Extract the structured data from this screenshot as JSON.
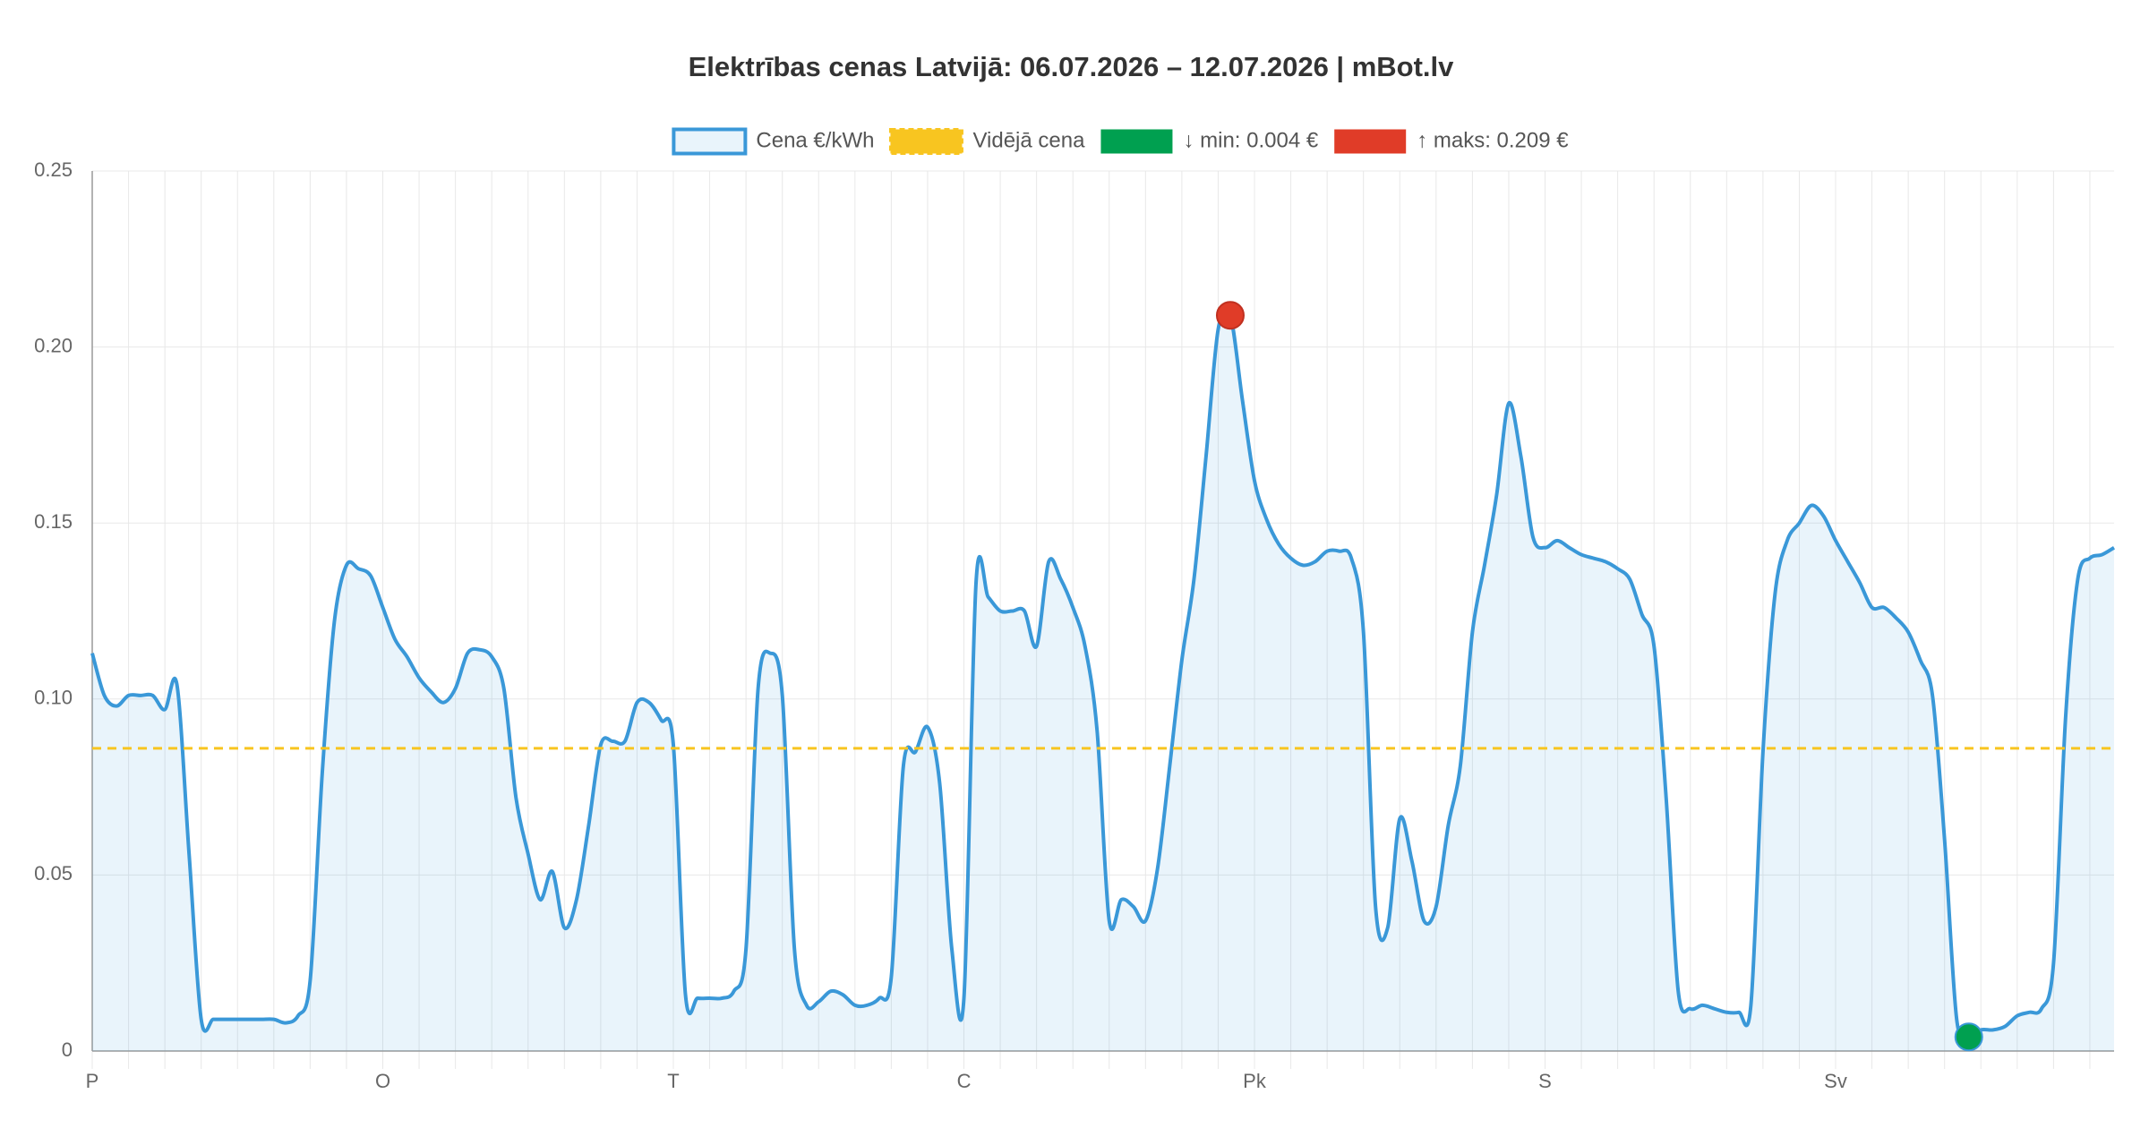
{
  "chart_data": {
    "type": "line",
    "title": "Elektrības cenas Latvijā: 06.07.2026 – 12.07.2026 | mBot.lv",
    "categories": [
      "P",
      null,
      null,
      null,
      null,
      null,
      null,
      null,
      null,
      null,
      null,
      null,
      null,
      null,
      null,
      null,
      null,
      null,
      null,
      null,
      null,
      null,
      null,
      null,
      "O",
      null,
      null,
      null,
      null,
      null,
      null,
      null,
      null,
      null,
      null,
      null,
      null,
      null,
      null,
      null,
      null,
      null,
      null,
      null,
      null,
      null,
      null,
      null,
      "T",
      null,
      null,
      null,
      null,
      null,
      null,
      null,
      null,
      null,
      null,
      null,
      null,
      null,
      null,
      null,
      null,
      null,
      null,
      null,
      null,
      null,
      null,
      null,
      "C",
      null,
      null,
      null,
      null,
      null,
      null,
      null,
      null,
      null,
      null,
      null,
      null,
      null,
      null,
      null,
      null,
      null,
      null,
      null,
      null,
      null,
      null,
      null,
      "Pk",
      null,
      null,
      null,
      null,
      null,
      null,
      null,
      null,
      null,
      null,
      null,
      null,
      null,
      null,
      null,
      null,
      null,
      null,
      null,
      null,
      null,
      null,
      null,
      "S",
      null,
      null,
      null,
      null,
      null,
      null,
      null,
      null,
      null,
      null,
      null,
      null,
      null,
      null,
      null,
      null,
      null,
      null,
      null,
      null,
      null,
      null,
      null,
      "Sv",
      null,
      null,
      null,
      null,
      null,
      null,
      null,
      null,
      null,
      null,
      null,
      null,
      null,
      null,
      null,
      null,
      null,
      null,
      null,
      null,
      null,
      null,
      null
    ],
    "series": [
      {
        "name": "Cena €/kWh",
        "color": "#3a98d8",
        "fill": "rgba(58,152,216,0.11)",
        "values": [
          0.113,
          0.101,
          0.098,
          0.101,
          0.101,
          0.101,
          0.097,
          0.104,
          0.056,
          0.009,
          0.009,
          0.009,
          0.009,
          0.009,
          0.009,
          0.009,
          0.008,
          0.01,
          0.02,
          0.079,
          0.122,
          0.138,
          0.137,
          0.135,
          0.126,
          0.117,
          0.112,
          0.106,
          0.102,
          0.099,
          0.103,
          0.113,
          0.114,
          0.112,
          0.103,
          0.072,
          0.056,
          0.043,
          0.051,
          0.035,
          0.043,
          0.064,
          0.087,
          0.088,
          0.088,
          0.099,
          0.099,
          0.094,
          0.087,
          0.016,
          0.015,
          0.015,
          0.015,
          0.017,
          0.029,
          0.103,
          0.113,
          0.101,
          0.029,
          0.013,
          0.014,
          0.017,
          0.016,
          0.013,
          0.013,
          0.015,
          0.021,
          0.081,
          0.085,
          0.092,
          0.076,
          0.029,
          0.015,
          0.133,
          0.129,
          0.125,
          0.125,
          0.125,
          0.115,
          0.139,
          0.134,
          0.126,
          0.115,
          0.091,
          0.037,
          0.043,
          0.041,
          0.037,
          0.052,
          0.081,
          0.111,
          0.134,
          0.169,
          0.205,
          0.209,
          0.185,
          0.162,
          0.151,
          0.144,
          0.14,
          0.138,
          0.139,
          0.142,
          0.142,
          0.14,
          0.119,
          0.041,
          0.035,
          0.066,
          0.054,
          0.037,
          0.041,
          0.064,
          0.081,
          0.119,
          0.138,
          0.158,
          0.184,
          0.169,
          0.146,
          0.143,
          0.145,
          0.143,
          0.141,
          0.14,
          0.139,
          0.137,
          0.134,
          0.124,
          0.115,
          0.072,
          0.017,
          0.012,
          0.013,
          0.012,
          0.011,
          0.011,
          0.013,
          0.085,
          0.13,
          0.145,
          0.15,
          0.155,
          0.152,
          0.145,
          0.139,
          0.133,
          0.126,
          0.126,
          0.123,
          0.119,
          0.111,
          0.101,
          0.06,
          0.009,
          0.004,
          0.006,
          0.006,
          0.007,
          0.01,
          0.011,
          0.012,
          0.025,
          0.095,
          0.134,
          0.14,
          0.141,
          0.143
        ]
      }
    ],
    "average": {
      "name": "Vidējā cena",
      "value": 0.086,
      "color": "#f8c520"
    },
    "min_marker": {
      "name": "↓ min: 0.004 €",
      "color": "#00a050"
    },
    "max_marker": {
      "name": "↑ maks: 0.209 €",
      "color": "#e03c28"
    },
    "ylim": [
      0,
      0.25
    ],
    "yticks": [
      0,
      0.05,
      {
        "value": 0.1,
        "label": "0.10"
      },
      0.15,
      {
        "value": 0.2,
        "label": "0.20"
      },
      0.25
    ],
    "grid": true
  }
}
